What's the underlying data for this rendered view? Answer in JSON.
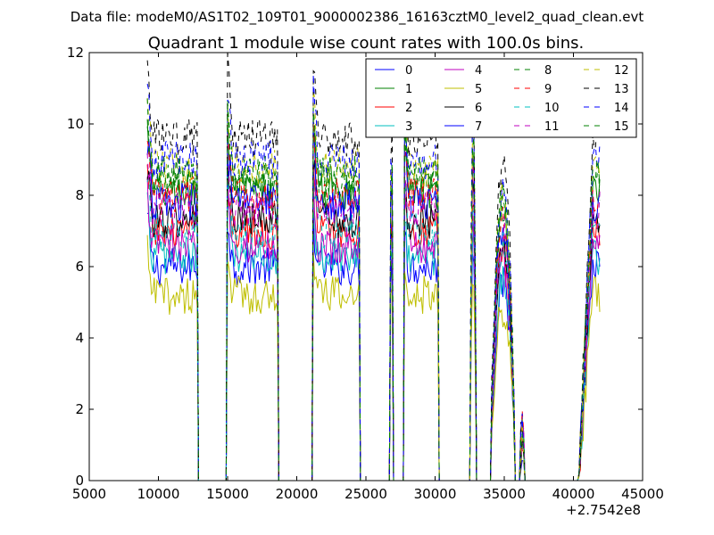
{
  "header": {
    "file_line": "Data file: modeM0/AS1T02_109T01_9000002386_16163cztM0_level2_quad_clean.evt"
  },
  "chart_data": {
    "type": "line",
    "title": "Quadrant 1 module wise count rates with 100.0s bins.",
    "xlabel": "",
    "ylabel": "",
    "x_offset_label": "+2.7542e8",
    "xlim": [
      5000,
      45000
    ],
    "ylim": [
      0,
      12
    ],
    "x_ticks": [
      5000,
      10000,
      15000,
      20000,
      25000,
      30000,
      35000,
      40000,
      45000
    ],
    "y_ticks": [
      0,
      2,
      4,
      6,
      8,
      10,
      12
    ],
    "grid": false,
    "legend_position": "top-right",
    "segments": [
      {
        "start": 9200,
        "end": 12800,
        "shape": "plateau"
      },
      {
        "start": 15000,
        "end": 18600,
        "shape": "plateau"
      },
      {
        "start": 21200,
        "end": 24500,
        "shape": "plateau"
      },
      {
        "start": 26700,
        "end": 27000,
        "shape": "spike"
      },
      {
        "start": 27800,
        "end": 30200,
        "shape": "plateau"
      },
      {
        "start": 32500,
        "end": 33000,
        "shape": "spike"
      },
      {
        "start": 34000,
        "end": 35800,
        "shape": "hump"
      },
      {
        "start": 36100,
        "end": 36500,
        "shape": "small_spike"
      },
      {
        "start": 40300,
        "end": 41900,
        "shape": "rise"
      }
    ],
    "series": [
      {
        "name": "0",
        "color": "#0000ff",
        "style": "solid",
        "level": 6.0
      },
      {
        "name": "1",
        "color": "#008000",
        "style": "solid",
        "level": 8.1
      },
      {
        "name": "2",
        "color": "#ff0000",
        "style": "solid",
        "level": 7.0
      },
      {
        "name": "3",
        "color": "#00bfbf",
        "style": "solid",
        "level": 6.3
      },
      {
        "name": "4",
        "color": "#bf00bf",
        "style": "solid",
        "level": 6.6
      },
      {
        "name": "5",
        "color": "#bfbf00",
        "style": "solid",
        "level": 5.2
      },
      {
        "name": "6",
        "color": "#000000",
        "style": "solid",
        "level": 7.3
      },
      {
        "name": "7",
        "color": "#0000ff",
        "style": "solid",
        "level": 7.8
      },
      {
        "name": "8",
        "color": "#008000",
        "style": "dashed",
        "level": 8.4
      },
      {
        "name": "9",
        "color": "#ff0000",
        "style": "dashed",
        "level": 8.0
      },
      {
        "name": "10",
        "color": "#00bfbf",
        "style": "dashed",
        "level": 7.0
      },
      {
        "name": "11",
        "color": "#bf00bf",
        "style": "dashed",
        "level": 7.6
      },
      {
        "name": "12",
        "color": "#bfbf00",
        "style": "dashed",
        "level": 8.8
      },
      {
        "name": "13",
        "color": "#000000",
        "style": "dashed",
        "level": 9.6
      },
      {
        "name": "14",
        "color": "#0000ff",
        "style": "dashed",
        "level": 9.0
      },
      {
        "name": "15",
        "color": "#008000",
        "style": "dashed",
        "level": 8.6
      }
    ]
  }
}
